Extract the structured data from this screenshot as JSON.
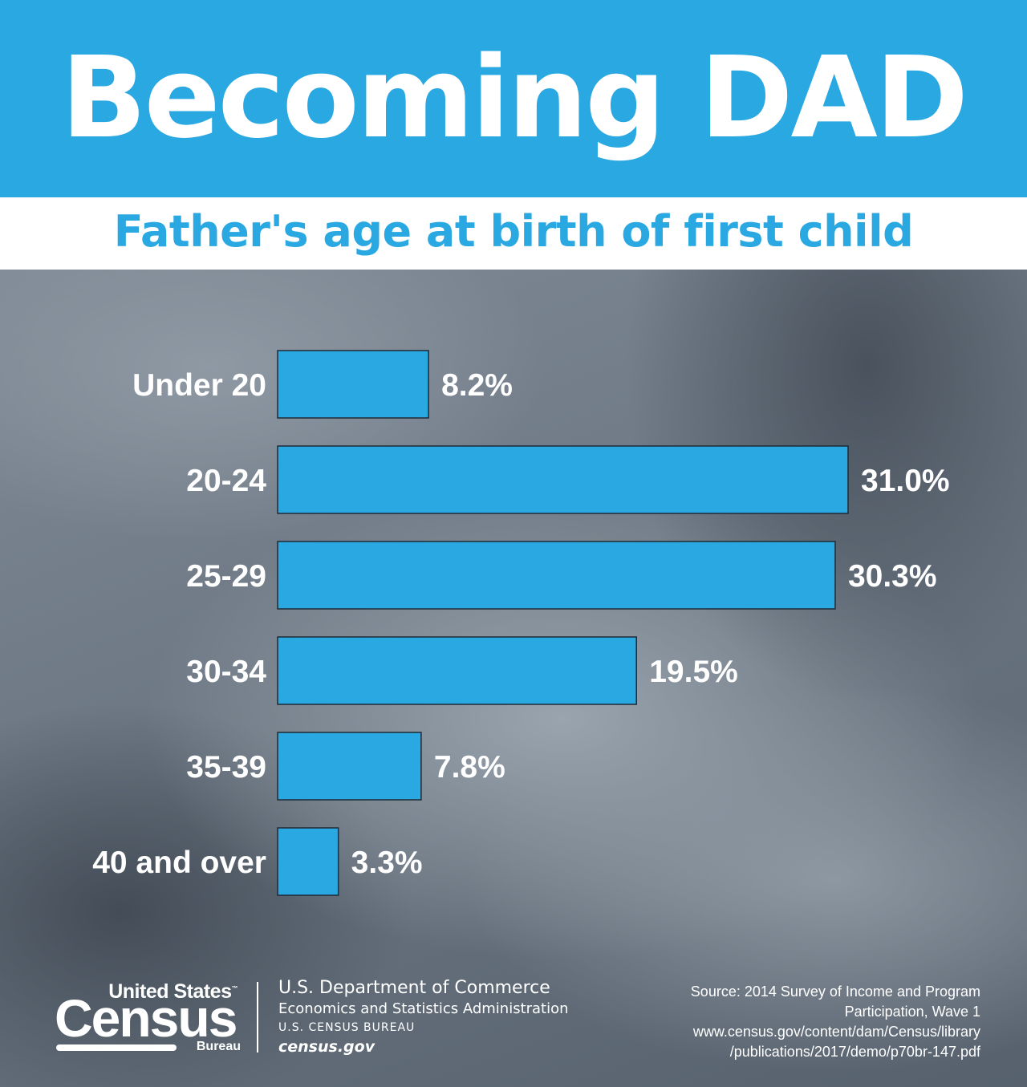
{
  "header": {
    "title": "Becoming DAD"
  },
  "chart_data": {
    "type": "bar",
    "orientation": "horizontal",
    "title": "Father's age at birth of first child",
    "categories": [
      "Under 20",
      "20-24",
      "25-29",
      "30-34",
      "35-39",
      "40 and over"
    ],
    "values": [
      8.2,
      31.0,
      30.3,
      19.5,
      7.8,
      3.3
    ],
    "value_labels": [
      "8.2%",
      "31.0%",
      "30.3%",
      "19.5%",
      "7.8%",
      "3.3%"
    ],
    "unit": "%",
    "xlim": [
      0,
      31.0
    ],
    "grid": false,
    "colors": {
      "bar": "#29a8e1",
      "header": "#2aa8e2"
    }
  },
  "footer": {
    "logo": {
      "line1": "United States",
      "trademark": "™",
      "line2": "Census",
      "line3": "Bureau"
    },
    "dept": {
      "line1": "U.S. Department of Commerce",
      "line2": "Economics and Statistics Administration",
      "line3": "U.S. CENSUS BUREAU",
      "line4": "census.gov"
    },
    "source": {
      "line1": "Source: 2014 Survey of Income and Program",
      "line2": "Participation, Wave 1",
      "line3": "www.census.gov/content/dam/Census/library",
      "line4": "/publications/2017/demo/p70br-147.pdf"
    }
  }
}
